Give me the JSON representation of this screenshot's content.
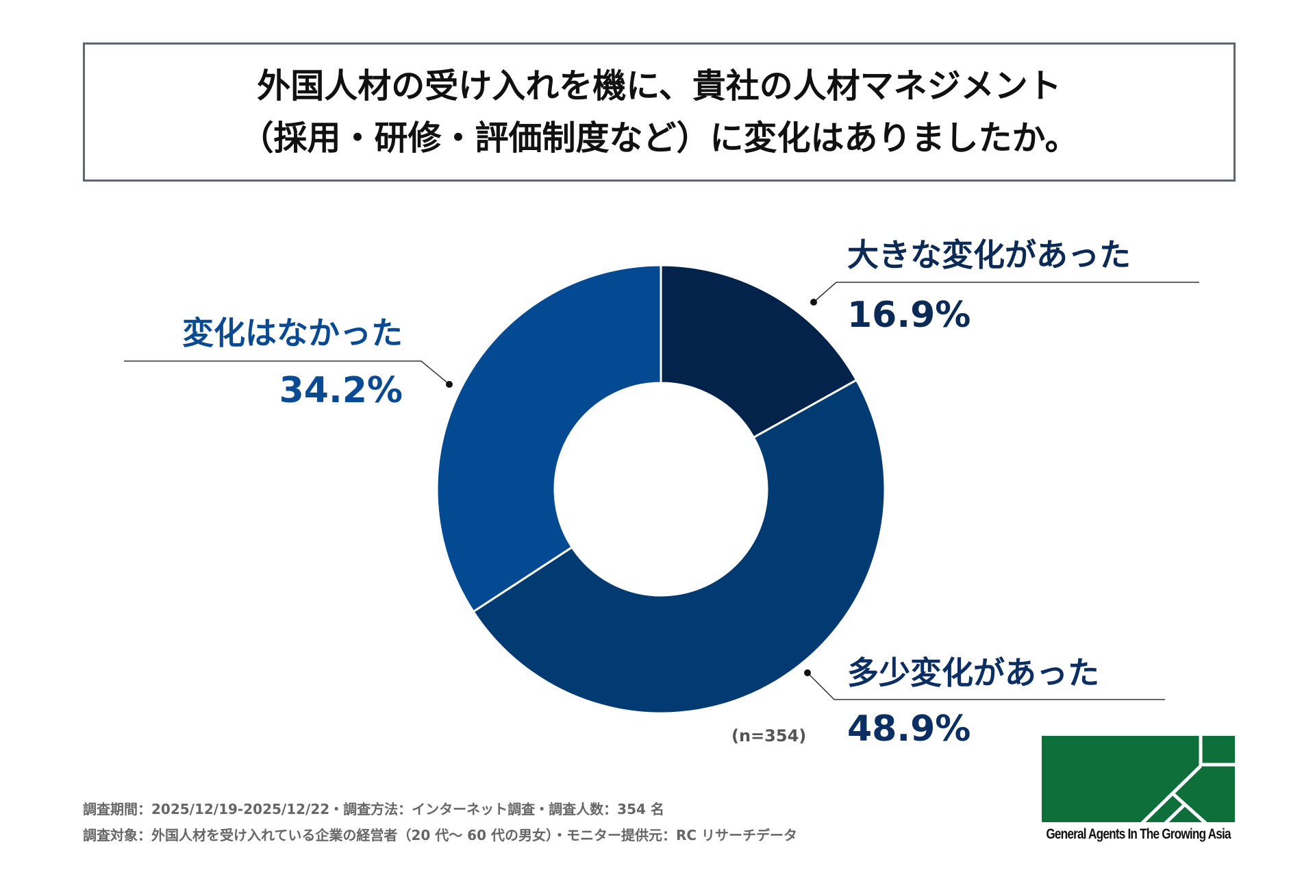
{
  "title": {
    "line1": "外国人材の受け入れを機に、貴社の人材マネジメント",
    "line2": "（採用・研修・評価制度など）に変化はありましたか。"
  },
  "chart_data": {
    "type": "pie",
    "donut": true,
    "start": "top, clockwise",
    "slices": [
      {
        "label": "大きな変化があった",
        "value": 16.9,
        "value_label": "16.9%",
        "color": "#04234a"
      },
      {
        "label": "多少変化があった",
        "value": 48.9,
        "value_label": "48.9%",
        "color": "#023a72"
      },
      {
        "label": "変化はなかった",
        "value": 34.2,
        "value_label": "34.2%",
        "color": "#034a92"
      }
    ],
    "sample_note": "(n=354)"
  },
  "label_colors": {
    "dark": "#0b2a55",
    "blue": "#0a4a92"
  },
  "footer": {
    "line1": "調査期間：2025/12/19-2025/12/22・調査方法：インターネット調査・調査人数：354 名",
    "line2": "調査対象：外国人材を受け入れている企業の経営者（20 代～ 60 代の男女）・モニター提供元：RC リサーチデータ"
  },
  "logo": {
    "text": "General Agents In The Growing Asia",
    "color": "#0e6f3a"
  }
}
